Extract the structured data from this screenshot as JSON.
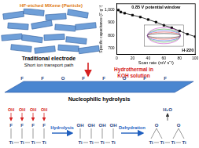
{
  "particle": {
    "label": "HF-etched MXene (Particle)",
    "title": "Traditional electrode",
    "subtitle": "Short ion transport path"
  },
  "process": {
    "label": "Hydrothermal in KOH solution"
  },
  "sheet": {
    "groups": [
      "F",
      "F",
      "O",
      "F",
      "F",
      "O",
      "F",
      "F"
    ]
  },
  "reaction": {
    "title": "Nucleophilic hydrolysis",
    "attack": "OH",
    "atom": "Ti",
    "byproduct": "H₂O",
    "steps": [
      "Hydrolysis",
      "Dehydration"
    ],
    "stages": [
      [
        "F",
        "F",
        "F",
        "F"
      ],
      [
        "OH",
        "OH",
        "OH",
        "OH"
      ],
      [
        "O",
        "O"
      ]
    ]
  },
  "chart_data": {
    "type": "line",
    "title": "0.85 V potential window",
    "annotation": "H-220",
    "x_label": "Scan rate (mV s⁻¹)",
    "y_label": "Specific capacitance (F g⁻¹)",
    "x": [
      2,
      5,
      10,
      20,
      30,
      40,
      50,
      60,
      70,
      80,
      90,
      100
    ],
    "values": [
      1000,
      985,
      975,
      960,
      945,
      925,
      905,
      880,
      860,
      835,
      810,
      790
    ],
    "color": "#000000",
    "marker": "square",
    "xlim": [
      0,
      100
    ],
    "xticks": [
      0,
      20,
      40,
      60,
      80,
      100
    ],
    "ylim": [
      650,
      1050
    ],
    "yticks": [
      700,
      800,
      900,
      1000
    ],
    "grid": false
  }
}
